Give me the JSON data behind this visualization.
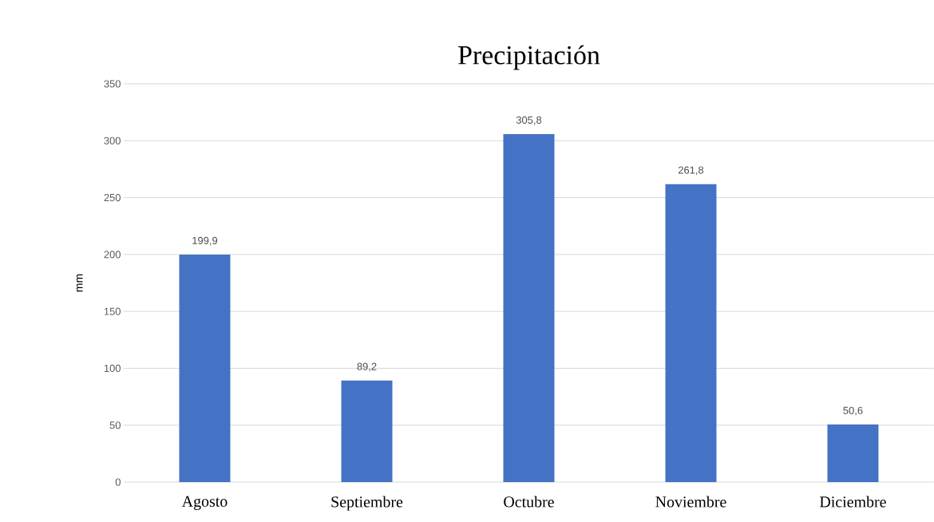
{
  "chart_data": {
    "type": "bar",
    "title": "Precipitación",
    "ylabel": "mm",
    "categories": [
      "Agosto",
      "Septiembre",
      "Octubre",
      "Noviembre",
      "Diciembre"
    ],
    "values": [
      199.9,
      89.2,
      305.8,
      261.8,
      50.6
    ],
    "value_labels": [
      "199,9",
      "89,2",
      "305,8",
      "261,8",
      "50,6"
    ],
    "color": "#4472c4",
    "ylim": [
      0,
      350
    ],
    "yticks": [
      0,
      50,
      100,
      150,
      200,
      250,
      300,
      350
    ],
    "grid": "y"
  }
}
